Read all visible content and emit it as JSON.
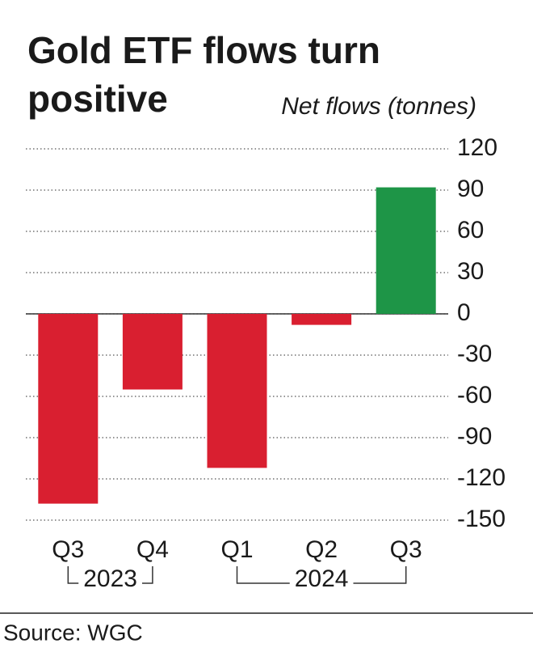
{
  "chart_data": {
    "type": "bar",
    "title": "Gold ETF flows turn positive",
    "y_axis_label": "Net flows (tonnes)",
    "categories": [
      "Q3",
      "Q4",
      "Q1",
      "Q2",
      "Q3"
    ],
    "groups": [
      {
        "name": "2023",
        "count": 2
      },
      {
        "name": "2024",
        "count": 3
      }
    ],
    "values": [
      -138,
      -55,
      -112,
      -8,
      92
    ],
    "positive_color": "#1e9547",
    "negative_color": "#d91f30",
    "ylim": [
      -150,
      120
    ],
    "yticks": [
      -150,
      -120,
      -90,
      -60,
      -30,
      0,
      30,
      60,
      90,
      120
    ],
    "grid": true,
    "source": "Source: WGC"
  }
}
